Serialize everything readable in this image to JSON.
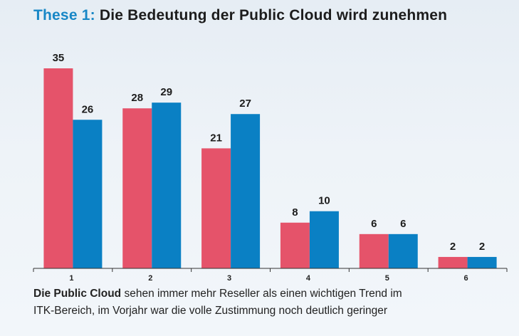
{
  "header": {
    "prefix": "These 1:",
    "title": "Die Bedeutung der Public Cloud wird zunehmen"
  },
  "chart_data": {
    "type": "bar",
    "categories": [
      "1",
      "2",
      "3",
      "4",
      "5",
      "6"
    ],
    "series": [
      {
        "color": "#e5536a",
        "values": [
          35,
          28,
          21,
          8,
          6,
          2
        ]
      },
      {
        "color": "#0a80c4",
        "values": [
          26,
          29,
          27,
          10,
          6,
          2
        ]
      }
    ],
    "ylim": [
      0,
      35
    ],
    "grid": false
  },
  "caption": {
    "lead": "Die Public Cloud",
    "line1": " sehen immer mehr Reseller als einen wichtigen Trend im",
    "line2": "ITK-Bereich, im Vorjahr war die volle Zustimmung noch deutlich geringer"
  }
}
